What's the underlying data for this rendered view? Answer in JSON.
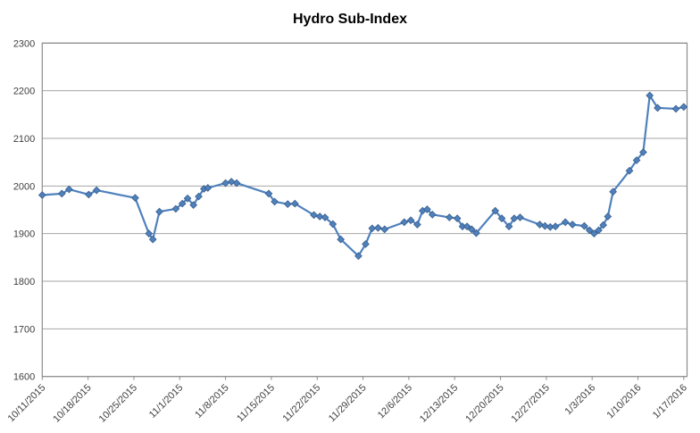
{
  "chart": {
    "title": "Hydro Sub-Index"
  },
  "chart_data": {
    "type": "line",
    "title": "Hydro Sub-Index",
    "legend": "none",
    "grid": "horizontal",
    "marker": "diamond",
    "series_color": "#4F81BD",
    "marker_edge_color": "#385D8A",
    "gridline_color": "#A6A6A6",
    "axis_border_color": "#8C8C8C",
    "ylim": [
      1600,
      2300
    ],
    "y_ticks": [
      1600,
      1700,
      1800,
      1900,
      2000,
      2100,
      2200,
      2300
    ],
    "x_first_tick_date": "10/11/2015",
    "x_tick_interval_days": 7,
    "x_axis_span_days": 98.5,
    "x_tick_labels": [
      "10/11/2015",
      "10/18/2015",
      "10/25/2015",
      "11/1/2015",
      "11/8/2015",
      "11/15/2015",
      "11/22/2015",
      "11/29/2015",
      "12/6/2015",
      "12/13/2015",
      "12/20/2015",
      "12/27/2015",
      "1/3/2016",
      "1/10/2016",
      "1/17/2016"
    ],
    "x_unit": "days since 10/11/2015",
    "points": [
      [
        0.0,
        1981
      ],
      [
        3.0,
        1984
      ],
      [
        4.1,
        1993
      ],
      [
        7.1,
        1982
      ],
      [
        8.3,
        1991
      ],
      [
        14.2,
        1975
      ],
      [
        16.3,
        1900
      ],
      [
        16.9,
        1888
      ],
      [
        17.9,
        1946
      ],
      [
        20.4,
        1952
      ],
      [
        21.4,
        1963
      ],
      [
        22.2,
        1974
      ],
      [
        23.1,
        1960
      ],
      [
        23.9,
        1978
      ],
      [
        24.7,
        1994
      ],
      [
        25.3,
        1996
      ],
      [
        28.0,
        2006
      ],
      [
        28.9,
        2009
      ],
      [
        29.7,
        2006
      ],
      [
        34.6,
        1984
      ],
      [
        35.5,
        1967
      ],
      [
        37.5,
        1962
      ],
      [
        38.6,
        1963
      ],
      [
        41.5,
        1939
      ],
      [
        42.4,
        1936
      ],
      [
        43.2,
        1934
      ],
      [
        44.4,
        1920
      ],
      [
        45.6,
        1888
      ],
      [
        48.3,
        1853
      ],
      [
        49.4,
        1878
      ],
      [
        50.4,
        1911
      ],
      [
        51.3,
        1912
      ],
      [
        52.3,
        1909
      ],
      [
        55.3,
        1924
      ],
      [
        56.3,
        1928
      ],
      [
        57.3,
        1919
      ],
      [
        58.1,
        1948
      ],
      [
        58.8,
        1951
      ],
      [
        59.6,
        1940
      ],
      [
        62.2,
        1934
      ],
      [
        63.4,
        1932
      ],
      [
        64.2,
        1915
      ],
      [
        64.9,
        1915
      ],
      [
        65.6,
        1909
      ],
      [
        66.3,
        1901
      ],
      [
        69.2,
        1948
      ],
      [
        70.2,
        1932
      ],
      [
        71.3,
        1915
      ],
      [
        72.1,
        1932
      ],
      [
        73.0,
        1934
      ],
      [
        76.0,
        1919
      ],
      [
        76.8,
        1916
      ],
      [
        77.6,
        1914
      ],
      [
        78.4,
        1915
      ],
      [
        79.9,
        1924
      ],
      [
        81.0,
        1919
      ],
      [
        82.8,
        1916
      ],
      [
        83.6,
        1907
      ],
      [
        84.3,
        1900
      ],
      [
        85.0,
        1907
      ],
      [
        85.7,
        1918
      ],
      [
        86.4,
        1936
      ],
      [
        87.2,
        1988
      ],
      [
        89.7,
        2032
      ],
      [
        90.8,
        2054
      ],
      [
        91.8,
        2071
      ],
      [
        92.8,
        2190
      ],
      [
        94.0,
        2164
      ],
      [
        96.8,
        2162
      ],
      [
        98.0,
        2166
      ]
    ]
  }
}
